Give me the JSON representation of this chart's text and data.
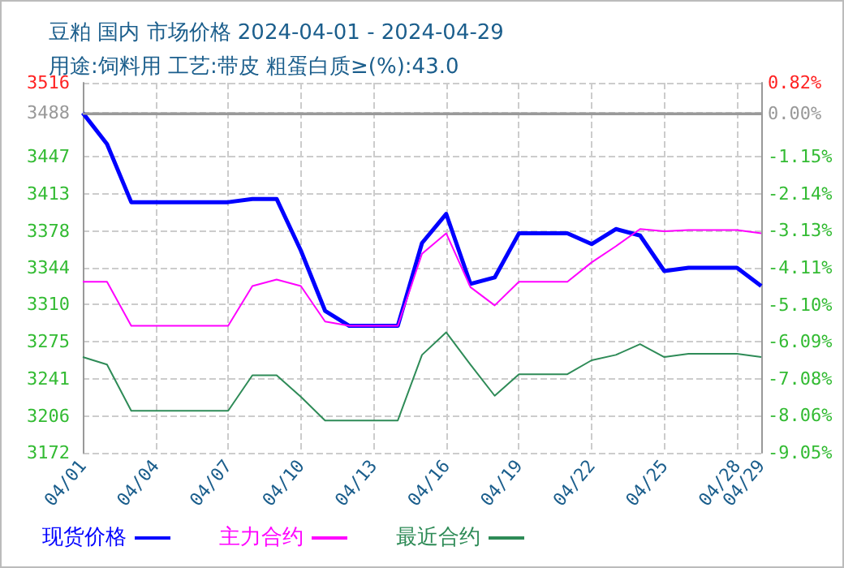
{
  "chart_data": {
    "type": "line",
    "title": "豆粕 国内 市场价格 2024-04-01 - 2024-04-29",
    "subtitle": "用途:饲料用 工艺:带皮 粗蛋白质≥(%):43.0",
    "x": [
      "2024-04-01",
      "2024-04-02",
      "2024-04-03",
      "2024-04-04",
      "2024-04-05",
      "2024-04-06",
      "2024-04-07",
      "2024-04-08",
      "2024-04-09",
      "2024-04-10",
      "2024-04-11",
      "2024-04-12",
      "2024-04-13",
      "2024-04-14",
      "2024-04-15",
      "2024-04-16",
      "2024-04-17",
      "2024-04-18",
      "2024-04-19",
      "2024-04-20",
      "2024-04-21",
      "2024-04-22",
      "2024-04-23",
      "2024-04-24",
      "2024-04-25",
      "2024-04-26",
      "2024-04-27",
      "2024-04-28",
      "2024-04-29"
    ],
    "series": [
      {
        "name": "现货价格",
        "color": "#0000ff",
        "values": [
          3488,
          3459,
          3405,
          3405,
          3405,
          3405,
          3405,
          3408,
          3408,
          3360,
          3304,
          3290,
          3290,
          3290,
          3367,
          3394,
          3329,
          3335,
          3376,
          3376,
          3376,
          3366,
          3380,
          3374,
          3341,
          3344,
          3344,
          3344,
          3327
        ]
      },
      {
        "name": "主力合约",
        "color": "#ff00ff",
        "values": [
          3331,
          3331,
          3290,
          3290,
          3290,
          3290,
          3290,
          3327,
          3333,
          3327,
          3294,
          3290,
          3290,
          3290,
          3357,
          3376,
          3326,
          3309,
          3331,
          3331,
          3331,
          3349,
          3364,
          3380,
          3378,
          3379,
          3379,
          3379,
          3376
        ]
      },
      {
        "name": "最近合约",
        "color": "#2e8b57",
        "values": [
          3261,
          3254,
          3211,
          3211,
          3211,
          3211,
          3211,
          3244,
          3244,
          3224,
          3202,
          3202,
          3202,
          3202,
          3263,
          3284,
          3254,
          3225,
          3245,
          3245,
          3245,
          3258,
          3263,
          3273,
          3261,
          3264,
          3264,
          3264,
          3261
        ]
      }
    ],
    "xlim": [
      "2024-04-01",
      "2024-04-29"
    ],
    "xticks": [
      {
        "value": "2024-04-01",
        "label": "04/01"
      },
      {
        "value": "2024-04-04",
        "label": "04/04"
      },
      {
        "value": "2024-04-07",
        "label": "04/07"
      },
      {
        "value": "2024-04-10",
        "label": "04/10"
      },
      {
        "value": "2024-04-13",
        "label": "04/13"
      },
      {
        "value": "2024-04-16",
        "label": "04/16"
      },
      {
        "value": "2024-04-19",
        "label": "04/19"
      },
      {
        "value": "2024-04-22",
        "label": "04/22"
      },
      {
        "value": "2024-04-25",
        "label": "04/25"
      },
      {
        "value": "2024-04-28",
        "label": "04/28"
      },
      {
        "value": "2024-04-29",
        "label": "04/29"
      }
    ],
    "ylim": [
      3172,
      3516
    ],
    "yticks": [
      3172,
      3206,
      3241,
      3275,
      3310,
      3344,
      3378,
      3413,
      3447,
      3488,
      3516
    ],
    "y2lim": [
      -9.05,
      0.82
    ],
    "y2ticks": [
      {
        "value": -9.05,
        "label": "-9.05%"
      },
      {
        "value": -8.06,
        "label": "-8.06%"
      },
      {
        "value": -7.08,
        "label": "-7.08%"
      },
      {
        "value": -6.09,
        "label": "-6.09%"
      },
      {
        "value": -5.1,
        "label": "-5.10%"
      },
      {
        "value": -4.11,
        "label": "-4.11%"
      },
      {
        "value": -3.13,
        "label": "-3.13%"
      },
      {
        "value": -2.14,
        "label": "-2.14%"
      },
      {
        "value": -1.15,
        "label": "-1.15%"
      },
      {
        "value": 0,
        "label": "0.00%"
      },
      {
        "value": 0.82,
        "label": "0.82%"
      }
    ],
    "ref_lines": [
      {
        "axis": "y2",
        "value": 0,
        "color": "#999999",
        "line_style": "solid"
      }
    ],
    "grid": true,
    "legend": "bottom left",
    "marker": "none",
    "line_style": "solid"
  }
}
